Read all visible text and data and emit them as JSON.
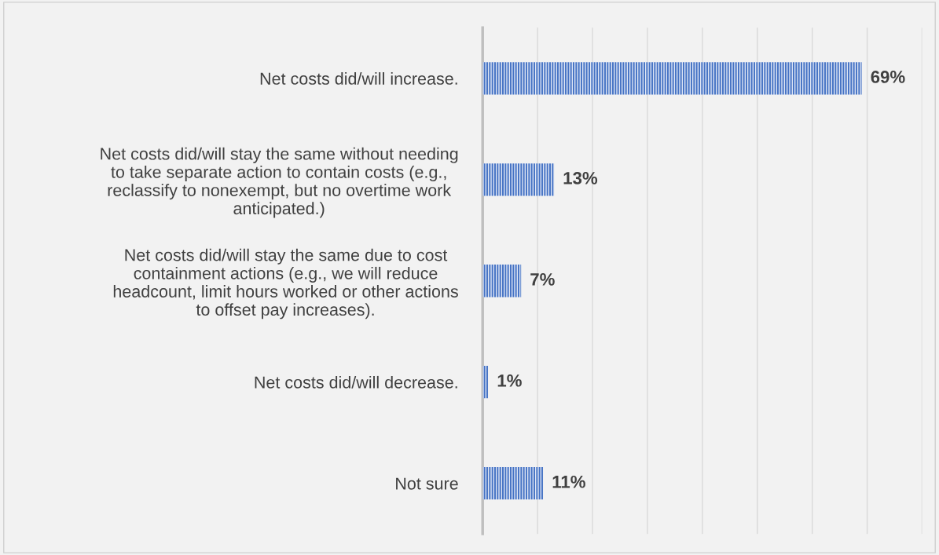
{
  "chart_data": {
    "type": "bar",
    "orientation": "horizontal",
    "categories": [
      "Net costs did/will increase.",
      "Net costs did/will stay the same without needing\nto take separate action to contain costs (e.g.,\nreclassify to nonexempt, but no overtime work\nanticipated.)",
      "Net costs did/will stay the same due to cost\ncontainment actions (e.g., we will reduce\nheadcount, limit hours worked or other actions\nto offset pay increases).",
      "Net costs did/will decrease.",
      "Not sure"
    ],
    "values": [
      69,
      13,
      7,
      1,
      11
    ],
    "color": "#4472c4",
    "xlim": [
      0,
      80
    ],
    "xticks": [
      {
        "value": 0,
        "label": null
      },
      {
        "value": 10,
        "label": null
      },
      {
        "value": 20,
        "label": null
      },
      {
        "value": 30,
        "label": null
      },
      {
        "value": 40,
        "label": null
      },
      {
        "value": 50,
        "label": null
      },
      {
        "value": 60,
        "label": null
      },
      {
        "value": 70,
        "label": null
      },
      {
        "value": 80,
        "label": null
      }
    ],
    "value_labels": [
      "69%",
      "13%",
      "7%",
      "1%",
      "11%"
    ],
    "grid": "x"
  }
}
